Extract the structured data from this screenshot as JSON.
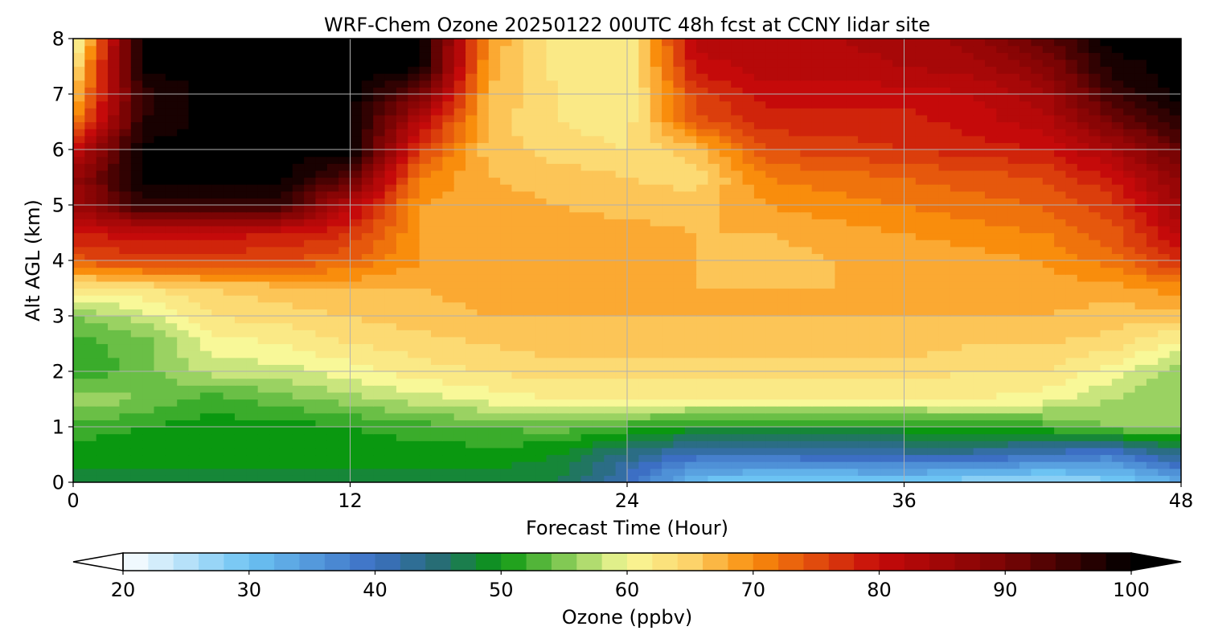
{
  "chart_data": {
    "type": "heatmap",
    "title": "WRF-Chem Ozone  20250122 00UTC 48h fcst at CCNY lidar site",
    "xlabel": "Forecast Time (Hour)",
    "ylabel": "Alt AGL (km)",
    "xlim": [
      0,
      48
    ],
    "ylim": [
      0,
      8
    ],
    "x_ticks": [
      0,
      12,
      24,
      36,
      48
    ],
    "y_ticks": [
      0,
      1,
      2,
      3,
      4,
      5,
      6,
      7,
      8
    ],
    "grid": true,
    "x": [
      0,
      3,
      6,
      9,
      12,
      15,
      18,
      21,
      24,
      27,
      30,
      33,
      36,
      39,
      42,
      45,
      48
    ],
    "y": [
      0,
      0.5,
      1,
      1.5,
      2,
      2.5,
      3,
      3.5,
      4,
      4.5,
      5,
      5.5,
      6,
      6.5,
      7,
      7.5,
      8
    ],
    "z": [
      [
        48,
        48,
        48,
        48,
        48,
        48,
        48,
        47,
        40,
        30,
        28,
        28,
        28,
        27,
        25,
        28,
        32
      ],
      [
        50,
        50,
        50,
        50,
        50,
        50,
        50,
        49,
        44,
        40,
        40,
        41,
        42,
        42,
        40,
        38,
        44
      ],
      [
        52,
        51,
        50,
        50,
        51,
        52,
        53,
        54,
        52,
        50,
        50,
        50,
        50,
        51,
        52,
        55,
        55
      ],
      [
        57,
        55,
        52,
        54,
        56,
        58,
        60,
        61,
        61,
        61,
        61,
        61,
        61,
        61,
        60,
        57,
        55
      ],
      [
        51,
        54,
        58,
        58,
        60,
        62,
        63,
        64,
        64,
        64,
        64,
        64,
        64,
        63,
        63,
        60,
        56
      ],
      [
        52,
        54,
        60,
        61,
        63,
        64,
        65,
        66,
        66,
        66,
        66,
        66,
        66,
        65,
        65,
        64,
        60
      ],
      [
        55,
        58,
        63,
        64,
        65,
        66,
        67,
        67,
        67,
        67,
        67,
        67,
        67,
        67,
        67,
        66,
        66
      ],
      [
        62,
        63,
        65,
        66,
        67,
        67,
        68,
        68,
        68,
        67,
        67,
        67,
        68,
        68,
        68,
        68,
        70
      ],
      [
        74,
        76,
        76,
        75,
        73,
        69,
        68,
        68,
        68,
        67,
        66,
        67,
        67,
        68,
        69,
        72,
        78
      ],
      [
        79,
        80,
        80,
        79,
        77,
        69,
        68,
        68,
        68,
        67,
        67,
        68,
        69,
        70,
        71,
        74,
        82
      ],
      [
        85,
        96,
        96,
        96,
        82,
        69,
        68,
        67,
        66,
        66,
        69,
        70,
        71,
        72,
        73,
        76,
        85
      ],
      [
        86,
        100,
        100,
        100,
        93,
        71,
        67,
        66,
        65,
        64,
        71,
        72,
        73,
        74,
        75,
        79,
        88
      ],
      [
        80,
        100,
        100,
        100,
        100,
        76,
        66,
        64,
        63,
        66,
        75,
        76,
        77,
        78,
        79,
        84,
        92
      ],
      [
        70,
        97,
        100,
        100,
        100,
        82,
        66,
        63,
        62,
        74,
        78,
        78,
        78,
        80,
        82,
        90,
        97
      ],
      [
        66,
        96,
        100,
        100,
        100,
        91,
        67,
        63,
        61,
        76,
        80,
        80,
        80,
        81,
        84,
        95,
        100
      ],
      [
        62,
        100,
        100,
        100,
        100,
        100,
        68,
        62,
        61,
        80,
        82,
        82,
        83,
        84,
        88,
        98,
        100
      ],
      [
        58,
        100,
        100,
        100,
        100,
        100,
        69,
        62,
        61,
        82,
        82,
        83,
        84,
        86,
        92,
        100,
        100
      ]
    ],
    "colorbar": {
      "label": "Ozone  (ppbv)",
      "min": 20,
      "max": 100,
      "ticks": [
        20,
        30,
        40,
        50,
        60,
        70,
        80,
        90,
        100
      ],
      "extend": "both",
      "color_stops": [
        {
          "v": 20,
          "c": "#ffffff"
        },
        {
          "v": 30,
          "c": "#6cc3f3"
        },
        {
          "v": 40,
          "c": "#3c6fc4"
        },
        {
          "v": 45,
          "c": "#276d75"
        },
        {
          "v": 50,
          "c": "#0a9810"
        },
        {
          "v": 55,
          "c": "#82c954"
        },
        {
          "v": 60,
          "c": "#f8f898"
        },
        {
          "v": 65,
          "c": "#fdd36a"
        },
        {
          "v": 70,
          "c": "#f98d0c"
        },
        {
          "v": 75,
          "c": "#e14b0d"
        },
        {
          "v": 80,
          "c": "#c50a0a"
        },
        {
          "v": 90,
          "c": "#7a0404"
        },
        {
          "v": 100,
          "c": "#000000"
        }
      ]
    }
  }
}
